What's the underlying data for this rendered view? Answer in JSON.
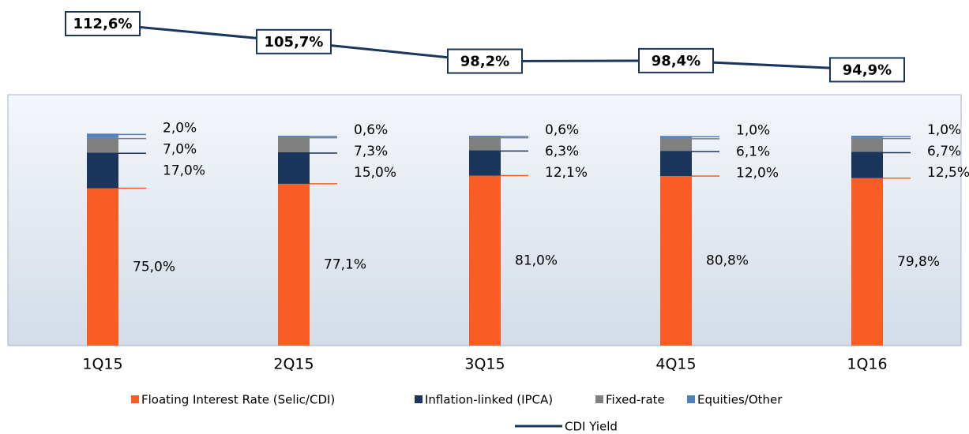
{
  "chart_data": {
    "type": "bar",
    "stacked": true,
    "categories": [
      "1Q15",
      "2Q15",
      "3Q15",
      "4Q15",
      "1Q16"
    ],
    "series": [
      {
        "name": "Floating Interest Rate (Selic/CDI)",
        "color": "#f95c25",
        "values": [
          75.0,
          77.1,
          81.0,
          80.8,
          79.8
        ],
        "value_labels": [
          "75,0%",
          "77,1%",
          "81,0%",
          "80,8%",
          "79,8%"
        ]
      },
      {
        "name": "Inflation-linked (IPCA)",
        "color": "#1b365d",
        "values": [
          17.0,
          15.0,
          12.1,
          12.0,
          12.5
        ],
        "value_labels": [
          "17,0%",
          "15,0%",
          "12,1%",
          "12,0%",
          "12,5%"
        ]
      },
      {
        "name": "Fixed-rate",
        "color": "#808080",
        "values": [
          7.0,
          7.3,
          6.3,
          6.1,
          6.7
        ],
        "value_labels": [
          "7,0%",
          "7,3%",
          "6,3%",
          "6,1%",
          "6,7%"
        ]
      },
      {
        "name": "Equities/Other",
        "color": "#4f81bd",
        "values": [
          2.0,
          0.6,
          0.6,
          1.0,
          1.0
        ],
        "value_labels": [
          "2,0%",
          "0,6%",
          "0,6%",
          "1,0%",
          "1,0%"
        ]
      },
      {
        "name": "CDI Yield",
        "type": "line",
        "color": "#1b365d",
        "values": [
          112.6,
          105.7,
          98.2,
          98.4,
          94.9
        ],
        "value_labels": [
          "112,6%",
          "105,7%",
          "98,2%",
          "98,4%",
          "94,9%"
        ]
      }
    ]
  }
}
